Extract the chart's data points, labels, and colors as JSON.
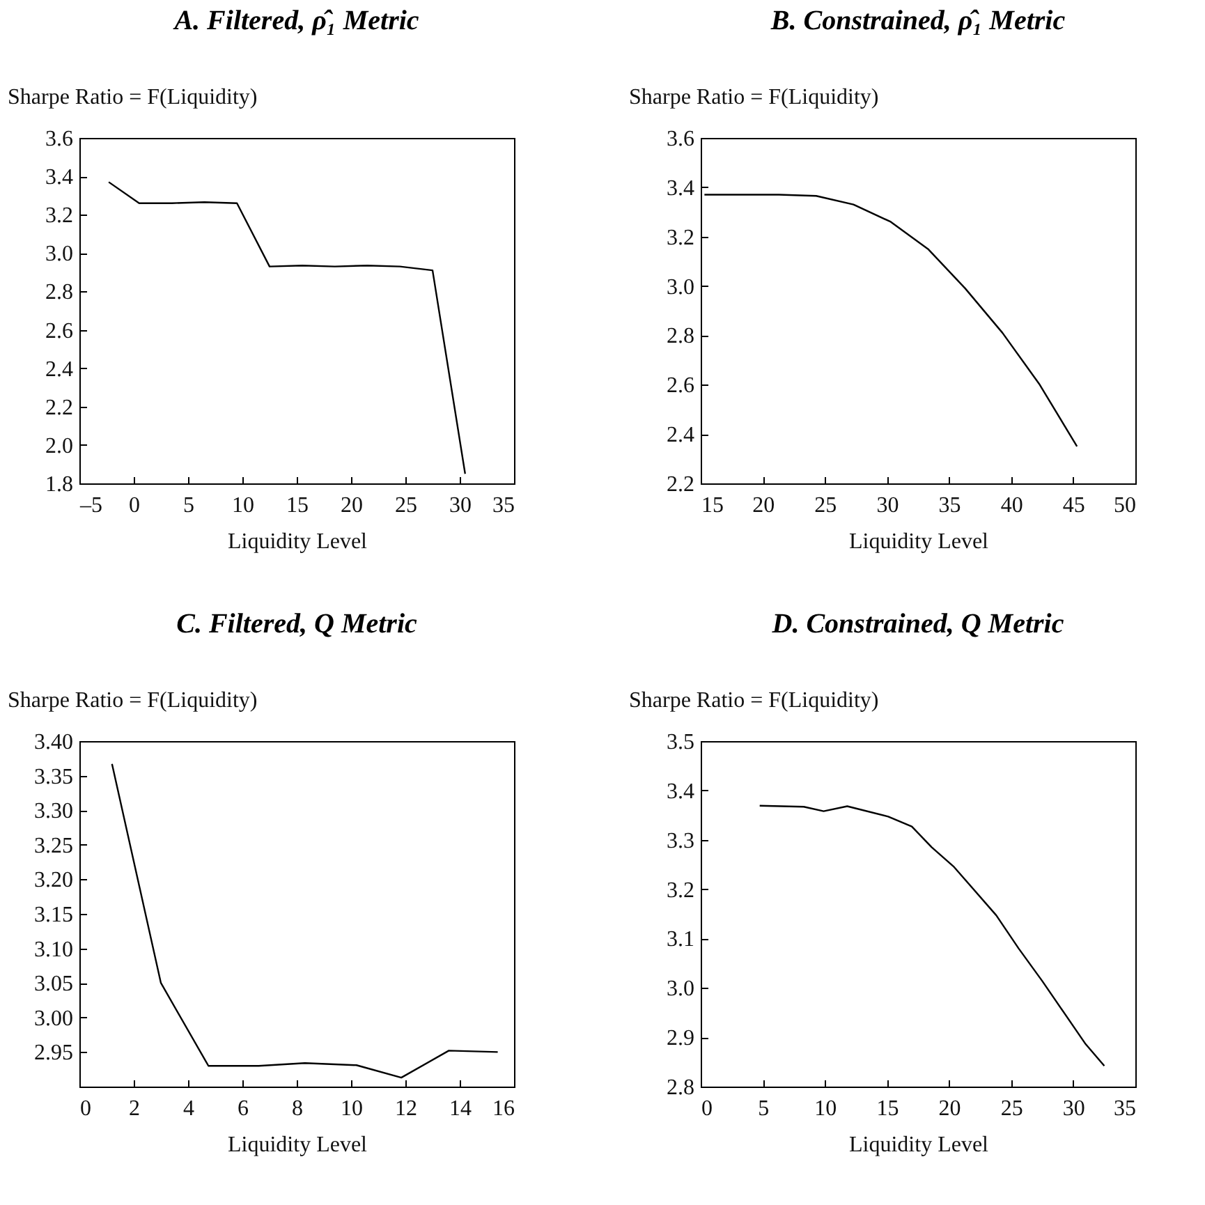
{
  "chart_data": [
    {
      "type": "line",
      "title": "A. Filtered, ρ̂₁ Metric",
      "ylabel": "Sharpe Ratio = F(Liquidity)",
      "xlabel": "Liquidity Level",
      "x": [
        -2.3,
        0.5,
        3.5,
        6.5,
        9.5,
        12.5,
        15.5,
        18.5,
        21.5,
        24.5,
        27.5,
        30.5
      ],
      "series": [
        {
          "color": "#000000",
          "values": [
            3.37,
            3.26,
            3.26,
            3.265,
            3.26,
            2.93,
            2.935,
            2.93,
            2.935,
            2.93,
            2.91,
            1.85
          ]
        }
      ],
      "xlim": [
        -5,
        35
      ],
      "xticks": [
        {
          "value": -5,
          "label": "–5"
        },
        0,
        5,
        10,
        15,
        20,
        25,
        30,
        35
      ],
      "ylim": [
        1.8,
        3.6
      ],
      "yticks": [
        1.8,
        {
          "value": 2,
          "label": "2.0"
        },
        2.2,
        2.4,
        2.6,
        2.8,
        {
          "value": 3,
          "label": "3.0"
        },
        3.2,
        3.4,
        3.6
      ],
      "grid": false,
      "marker": "none",
      "line_style": "solid"
    },
    {
      "type": "line",
      "title": "B. Constrained, ρ̂₁ Metric",
      "ylabel": "Sharpe Ratio = F(Liquidity)",
      "xlabel": "Liquidity Level",
      "x": [
        15.3,
        18.3,
        21.3,
        24.3,
        27.3,
        30.3,
        33.3,
        36.3,
        39.3,
        42.3,
        45.3
      ],
      "series": [
        {
          "color": "#000000",
          "values": [
            3.37,
            3.37,
            3.37,
            3.365,
            3.33,
            3.26,
            3.15,
            2.99,
            2.81,
            2.6,
            2.35
          ]
        }
      ],
      "xlim": [
        15,
        50
      ],
      "xticks": [
        15,
        20,
        25,
        30,
        35,
        40,
        45,
        50
      ],
      "ylim": [
        2.2,
        3.6
      ],
      "yticks": [
        2.2,
        2.4,
        2.6,
        2.8,
        {
          "value": 3,
          "label": "3.0"
        },
        3.2,
        3.4,
        3.6
      ],
      "grid": false,
      "marker": "none",
      "line_style": "solid"
    },
    {
      "type": "line",
      "title": "C. Filtered, Q Metric",
      "ylabel": "Sharpe Ratio = F(Liquidity)",
      "xlabel": "Liquidity Level",
      "x": [
        1.2,
        3.0,
        4.75,
        6.6,
        8.3,
        10.2,
        11.85,
        13.6,
        15.4
      ],
      "series": [
        {
          "color": "#000000",
          "values": [
            3.367,
            3.05,
            2.93,
            2.93,
            2.934,
            2.931,
            2.913,
            2.952,
            2.95
          ]
        }
      ],
      "xlim": [
        0,
        16
      ],
      "xticks": [
        0,
        2,
        4,
        6,
        8,
        10,
        12,
        14,
        16
      ],
      "ylim": [
        2.9,
        3.4
      ],
      "yticks": [
        2.95,
        {
          "value": 3,
          "label": "3.00"
        },
        3.05,
        {
          "value": 3.1,
          "label": "3.10"
        },
        3.15,
        {
          "value": 3.2,
          "label": "3.20"
        },
        3.25,
        {
          "value": 3.3,
          "label": "3.30"
        },
        3.35,
        {
          "value": 3.4,
          "label": "3.40"
        }
      ],
      "grid": false,
      "marker": "none",
      "line_style": "solid"
    },
    {
      "type": "line",
      "title": "D. Constrained, Q Metric",
      "ylabel": "Sharpe Ratio = F(Liquidity)",
      "xlabel": "Liquidity Level",
      "x": [
        4.75,
        8.3,
        9.9,
        11.8,
        15.1,
        17.0,
        18.6,
        20.4,
        23.8,
        25.6,
        27.5,
        31.0,
        32.5
      ],
      "series": [
        {
          "color": "#000000",
          "values": [
            3.369,
            3.367,
            3.358,
            3.368,
            3.347,
            3.327,
            3.285,
            3.245,
            3.147,
            3.08,
            3.014,
            2.886,
            2.842
          ]
        }
      ],
      "xlim": [
        0,
        35
      ],
      "xticks": [
        0,
        5,
        10,
        15,
        20,
        25,
        30,
        35
      ],
      "ylim": [
        2.8,
        3.5
      ],
      "yticks": [
        2.8,
        2.9,
        {
          "value": 3,
          "label": "3.0"
        },
        3.1,
        3.2,
        3.3,
        3.4,
        3.5
      ],
      "grid": false,
      "marker": "none",
      "line_style": "solid"
    }
  ]
}
